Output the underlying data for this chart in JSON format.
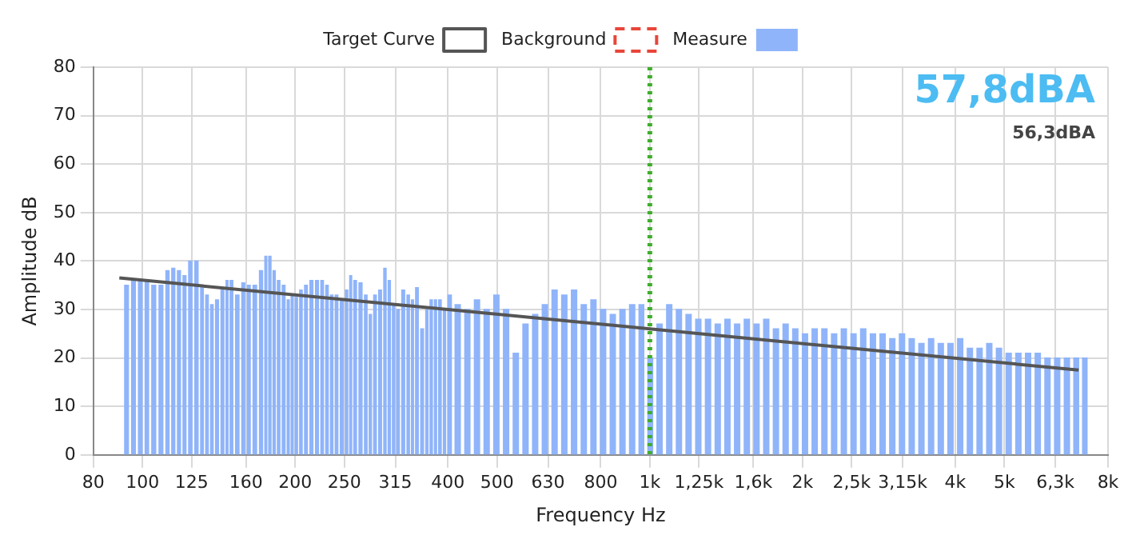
{
  "chart_data": {
    "type": "bar",
    "xlabel": "Frequency Hz",
    "ylabel": "Amplitude dB",
    "log": "x",
    "grid": true,
    "legend": "top",
    "marker": "none",
    "xlim": [
      80,
      8000
    ],
    "ylim": [
      0,
      80
    ],
    "xticks": [
      80,
      100,
      125,
      160,
      200,
      250,
      315,
      400,
      500,
      630,
      800,
      {
        "value": 1000,
        "label": "1k"
      },
      {
        "value": 1250,
        "label": "1,25k"
      },
      {
        "value": 1600,
        "label": "1,6k"
      },
      {
        "value": 2000,
        "label": "2k"
      },
      {
        "value": 2500,
        "label": "2,5k"
      },
      {
        "value": 3150,
        "label": "3,15k"
      },
      {
        "value": 4000,
        "label": "4k"
      },
      {
        "value": 5000,
        "label": "5k"
      },
      {
        "value": 6300,
        "label": "6,3k"
      },
      {
        "value": 8000,
        "label": "8k"
      }
    ],
    "yticks": [
      0,
      10,
      20,
      30,
      40,
      50,
      60,
      70,
      80
    ],
    "series": [
      {
        "name": "Target Curve",
        "type": "line",
        "color": "#555555",
        "line_style": "solid",
        "x": [
          90,
          1000,
          7000
        ],
        "values": [
          36.5,
          26,
          17.5
        ]
      },
      {
        "name": "Background",
        "type": "line",
        "color": "#e8463a",
        "line_style": "dashed"
      },
      {
        "name": "Measure",
        "color": "#8fb4fa",
        "x": [
          93,
          96,
          99,
          102,
          105,
          109,
          112,
          115,
          118,
          121,
          124,
          128,
          131,
          134,
          137,
          140,
          144,
          147,
          149,
          154,
          158,
          162,
          166,
          172,
          175,
          178,
          182,
          185,
          190,
          194,
          197,
          201,
          205,
          210,
          215,
          221,
          226,
          231,
          236,
          241,
          247,
          253,
          257,
          262,
          269,
          276,
          281,
          287,
          294,
          301,
          306,
          313,
          318,
          327,
          334,
          341,
          346,
          357,
          363,
          371,
          378,
          385,
          395,
          400,
          418,
          437,
          456,
          477,
          498,
          521,
          544,
          569,
          594,
          621,
          649,
          678,
          709,
          741,
          774,
          809,
          845,
          883,
          923,
          964,
          1000,
          1045,
          1092,
          1141,
          1192,
          1246,
          1302,
          1361,
          1422,
          1486,
          1553,
          1623,
          1696,
          1772,
          1852,
          1935,
          2022,
          2113,
          2208,
          2308,
          2412,
          2520,
          2634,
          2752,
          2876,
          3005,
          3141,
          3282,
          3430,
          3584,
          3745,
          3914,
          4090,
          4274,
          4466,
          4667,
          4877,
          5097,
          5326,
          5566,
          5816,
          6078,
          6352,
          6638,
          6936,
          7200
        ],
        "values": [
          35,
          36,
          36,
          36,
          35,
          35,
          38,
          38.5,
          38,
          37,
          40,
          40,
          35,
          33,
          31,
          32,
          34,
          36,
          36,
          33,
          35.5,
          35,
          35,
          38,
          41,
          41,
          38,
          36,
          35,
          32,
          33,
          32.5,
          34,
          35,
          36,
          36,
          36,
          35,
          33,
          33,
          32,
          34,
          37,
          36,
          35.5,
          33,
          29,
          33,
          34,
          38.5,
          36,
          31,
          30,
          34,
          33,
          32,
          34.5,
          26,
          30,
          32,
          32,
          32,
          30,
          33,
          31,
          30,
          32,
          30,
          33,
          30,
          21,
          27,
          29,
          31,
          34,
          33,
          34,
          31,
          32,
          30,
          29,
          30,
          31,
          31,
          20,
          27,
          31,
          30,
          29,
          28,
          28,
          27,
          28,
          27,
          28,
          27,
          28,
          26,
          27,
          26,
          25,
          26,
          26,
          25,
          26,
          25,
          26,
          25,
          25,
          24,
          25,
          24,
          23,
          24,
          23,
          23,
          24,
          22,
          22,
          23,
          22,
          21,
          21,
          21,
          21,
          20,
          20,
          20,
          20,
          20
        ]
      }
    ],
    "ref_lines": [
      {
        "axis": "x",
        "value": 1000,
        "color": "#3fae2a",
        "line_style": "dotted"
      }
    ],
    "annotations": [
      "57,8dBA",
      "56,3dBA"
    ]
  }
}
